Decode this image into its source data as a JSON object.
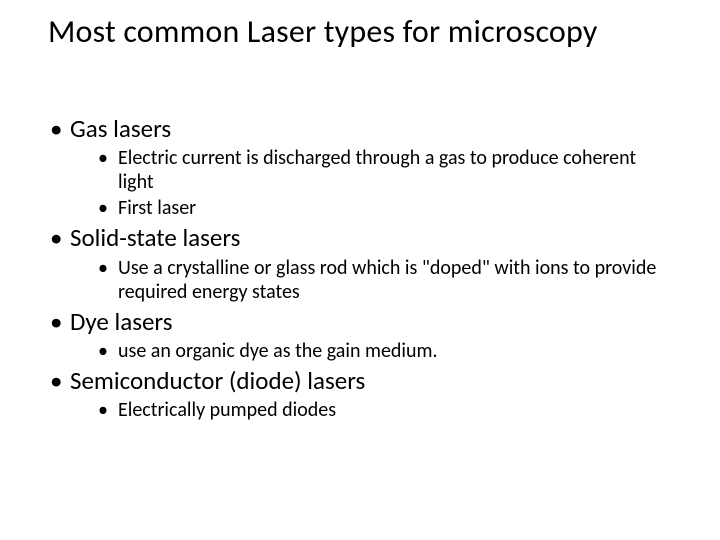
{
  "slide": {
    "title": "Most common Laser types for microscopy",
    "title_fontsize": 32,
    "background_color": "#ffffff",
    "text_color": "#000000",
    "font_family": "Calibri",
    "level1_fontsize": 25,
    "level2_fontsize": 20,
    "bullets": [
      {
        "label": "Gas lasers",
        "children": [
          {
            "label": "Electric current is discharged through a gas to produce coherent light"
          },
          {
            "label": "First laser"
          }
        ]
      },
      {
        "label": "Solid-state lasers",
        "children": [
          {
            "label": "Use a crystalline or glass rod which is \"doped\" with ions to provide required energy states"
          }
        ]
      },
      {
        "label": "Dye lasers",
        "children": [
          {
            "label": "use an organic dye as the gain medium."
          }
        ]
      },
      {
        "label": "Semiconductor (diode) lasers",
        "children": [
          {
            "label": "Electrically pumped diodes"
          }
        ]
      }
    ]
  }
}
